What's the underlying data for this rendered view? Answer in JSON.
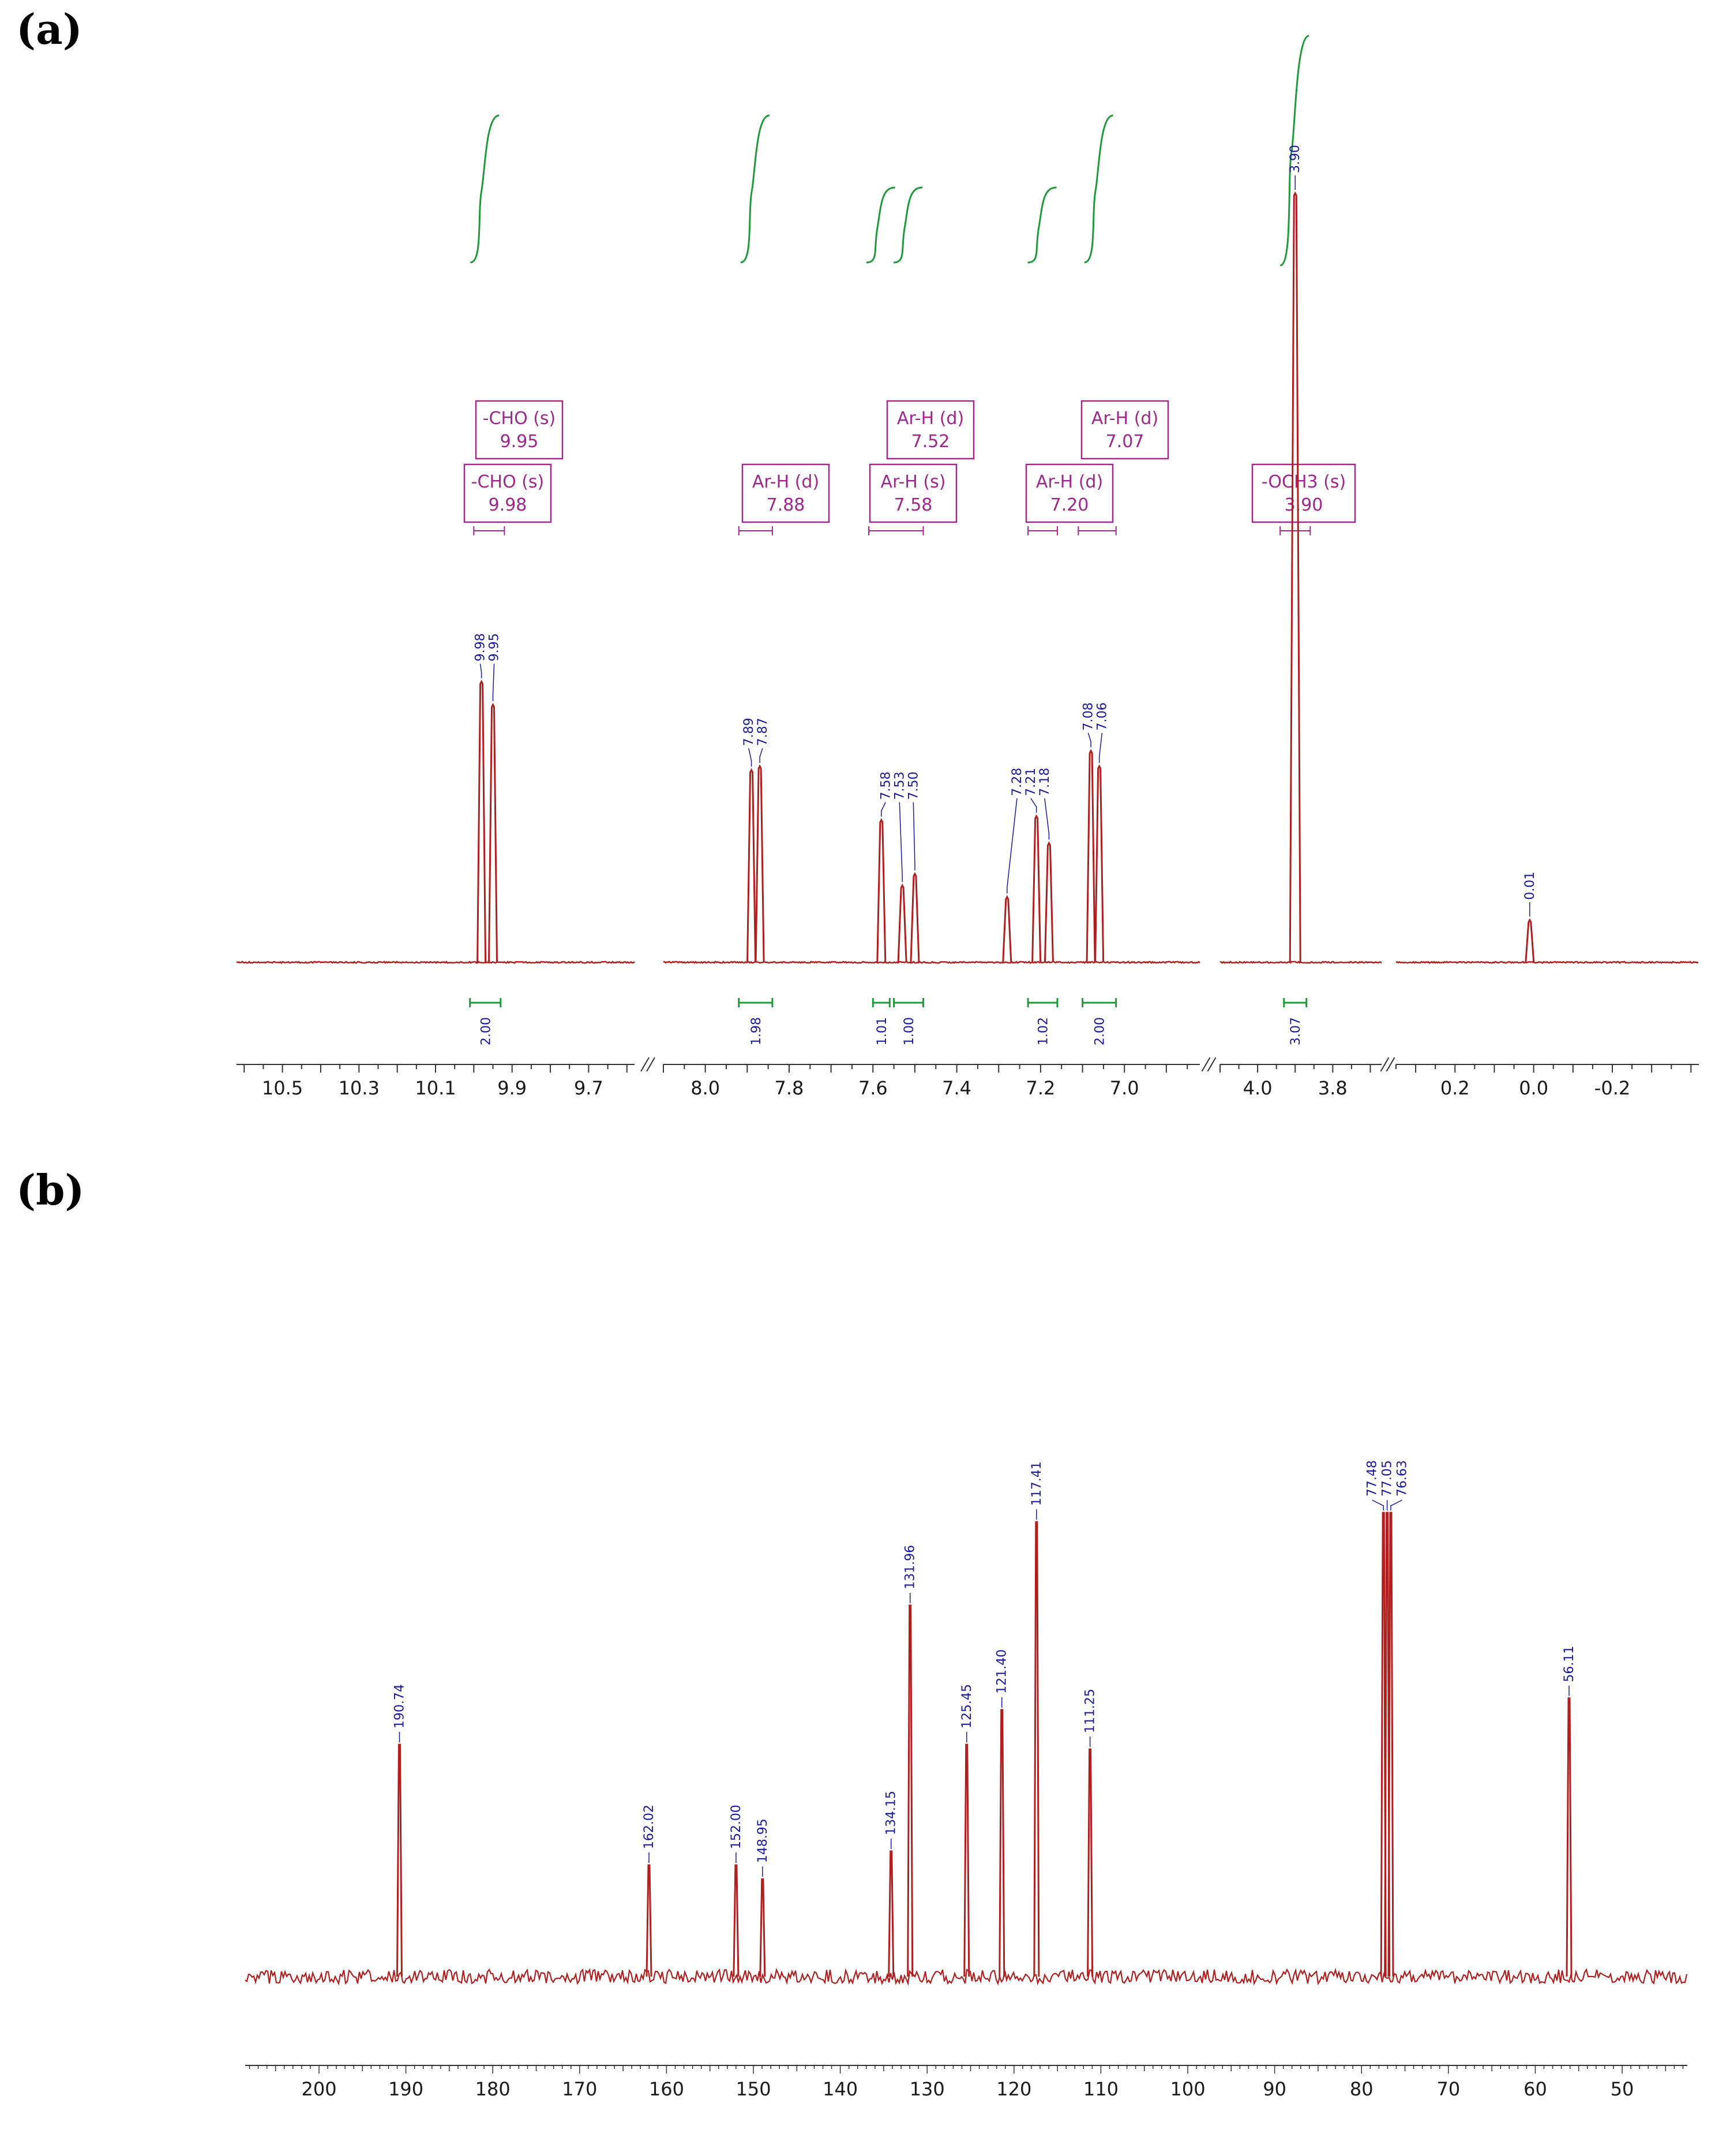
{
  "panels": {
    "a_label": "(a)",
    "b_label": "(b)"
  },
  "colors": {
    "spectrum": "#b01e1e",
    "peak_label": "#1a1a9a",
    "integral": "#1f9a3a",
    "multiplet": "#a0288c",
    "axis": "#333333"
  },
  "chart_data": [
    {
      "id": "h1nmr",
      "type": "line",
      "title": "",
      "xlabel": "",
      "ylabel": "",
      "axis_reversed": true,
      "segments": [
        {
          "xlim": [
            10.62,
            9.58
          ],
          "ticks": [
            "10.5",
            "10.3",
            "10.1",
            "9.9",
            "9.7"
          ]
        },
        {
          "xlim": [
            8.1,
            6.82
          ],
          "ticks": [
            "8.0",
            "7.8",
            "7.6",
            "7.4",
            "7.2",
            "7.0"
          ]
        },
        {
          "xlim": [
            4.1,
            3.67
          ],
          "ticks": [
            "4.0",
            "3.8"
          ]
        },
        {
          "xlim": [
            0.35,
            -0.42
          ],
          "ticks": [
            "0.2",
            "0.0",
            "-0.2"
          ]
        }
      ],
      "peaks": [
        {
          "ppm": 9.98,
          "label": "9.98",
          "height": 0.365
        },
        {
          "ppm": 9.95,
          "label": "9.95",
          "height": 0.335
        },
        {
          "ppm": 7.89,
          "label": "7.89",
          "height": 0.25
        },
        {
          "ppm": 7.87,
          "label": "7.87",
          "height": 0.255
        },
        {
          "ppm": 7.58,
          "label": "7.58",
          "height": 0.185
        },
        {
          "ppm": 7.53,
          "label": "7.53",
          "height": 0.1
        },
        {
          "ppm": 7.5,
          "label": "7.50",
          "height": 0.115
        },
        {
          "ppm": 7.28,
          "label": "7.28",
          "height": 0.085
        },
        {
          "ppm": 7.21,
          "label": "7.21",
          "height": 0.19
        },
        {
          "ppm": 7.18,
          "label": "7.18",
          "height": 0.155
        },
        {
          "ppm": 7.08,
          "label": "7.08",
          "height": 0.275
        },
        {
          "ppm": 7.06,
          "label": "7.06",
          "height": 0.255
        },
        {
          "ppm": 3.9,
          "label": "3.90",
          "height": 1.0
        },
        {
          "ppm": 0.01,
          "label": "0.01",
          "height": 0.055
        }
      ],
      "integrals": [
        {
          "from": 10.01,
          "to": 9.93,
          "value": "2.00"
        },
        {
          "from": 7.92,
          "to": 7.84,
          "value": "1.98"
        },
        {
          "from": 7.6,
          "to": 7.56,
          "value": "1.01"
        },
        {
          "from": 7.55,
          "to": 7.48,
          "value": "1.00"
        },
        {
          "from": 7.23,
          "to": 7.16,
          "value": "1.02"
        },
        {
          "from": 7.1,
          "to": 7.02,
          "value": "2.00"
        },
        {
          "from": 3.93,
          "to": 3.87,
          "value": "3.07"
        }
      ],
      "multiplets": [
        {
          "name": "-CHO (s)",
          "shift": "9.95",
          "ppm": 9.95
        },
        {
          "name": "-CHO (s)",
          "shift": "9.98",
          "ppm": 9.98
        },
        {
          "name": "Ar-H (d)",
          "shift": "7.88",
          "ppm": 7.88
        },
        {
          "name": "Ar-H (s)",
          "shift": "7.58",
          "ppm": 7.58
        },
        {
          "name": "Ar-H (d)",
          "shift": "7.52",
          "ppm": 7.52
        },
        {
          "name": "Ar-H (d)",
          "shift": "7.20",
          "ppm": 7.2
        },
        {
          "name": "Ar-H (d)",
          "shift": "7.07",
          "ppm": 7.07
        },
        {
          "name": "-OCH3 (s)",
          "shift": "3.90",
          "ppm": 3.9
        }
      ]
    },
    {
      "id": "c13nmr",
      "type": "line",
      "title": "",
      "xlabel": "",
      "ylabel": "",
      "axis_reversed": true,
      "xlim": [
        208.5,
        42.5
      ],
      "ticks": [
        "200",
        "190",
        "180",
        "170",
        "160",
        "150",
        "140",
        "130",
        "120",
        "110",
        "100",
        "90",
        "80",
        "70",
        "60",
        "50"
      ],
      "peaks": [
        {
          "ppm": 190.74,
          "label": "190.74",
          "height": 0.5
        },
        {
          "ppm": 162.02,
          "label": "162.02",
          "height": 0.24
        },
        {
          "ppm": 152.0,
          "label": "152.00",
          "height": 0.24
        },
        {
          "ppm": 148.95,
          "label": "148.95",
          "height": 0.21
        },
        {
          "ppm": 134.15,
          "label": "134.15",
          "height": 0.27
        },
        {
          "ppm": 131.96,
          "label": "131.96",
          "height": 0.8
        },
        {
          "ppm": 125.45,
          "label": "125.45",
          "height": 0.5
        },
        {
          "ppm": 121.4,
          "label": "121.40",
          "height": 0.575
        },
        {
          "ppm": 117.41,
          "label": "117.41",
          "height": 0.98
        },
        {
          "ppm": 111.25,
          "label": "111.25",
          "height": 0.49
        },
        {
          "ppm": 77.48,
          "label": "77.48",
          "height": 1.0
        },
        {
          "ppm": 77.05,
          "label": "77.05",
          "height": 1.0
        },
        {
          "ppm": 76.63,
          "label": "76.63",
          "height": 1.0
        },
        {
          "ppm": 56.11,
          "label": "56.11",
          "height": 0.6
        }
      ]
    }
  ]
}
